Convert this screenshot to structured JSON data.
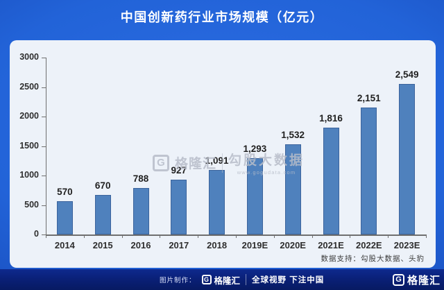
{
  "header": {
    "title": "中国创新药行业市场规模（亿元）"
  },
  "chart_data": {
    "type": "bar",
    "title": "中国创新药行业市场规模（亿元）",
    "categories": [
      "2014",
      "2015",
      "2016",
      "2017",
      "2018",
      "2019E",
      "2020E",
      "2021E",
      "2022E",
      "2023E"
    ],
    "values": [
      570,
      670,
      788,
      927,
      1091,
      1293,
      1532,
      1816,
      2151,
      2549
    ],
    "value_labels": [
      "570",
      "670",
      "788",
      "927",
      "1,091",
      "1,293",
      "1,532",
      "1,816",
      "2,151",
      "2,549"
    ],
    "xlabel": "",
    "ylabel": "",
    "ylim": [
      0,
      3000
    ],
    "yticks": [
      3000,
      2500,
      2000,
      1500,
      1000,
      500,
      0
    ],
    "ytick_labels": [
      "3000",
      "2500",
      "2000",
      "1500",
      "1000",
      "500",
      "0"
    ],
    "grid": false,
    "legend": null,
    "bar_color": "#4f81bd",
    "bar_border_color": "#3b639c"
  },
  "watermark": {
    "glyph": "G",
    "brand": "格隆汇",
    "divider": "|",
    "partner": "勾股大数据",
    "url": "www.gogudata.com"
  },
  "panel": {
    "data_support": "数据支持：勾股大数据、头豹"
  },
  "footer": {
    "made_by": "图片制作：",
    "glyph": "G",
    "brand": "格隆汇",
    "divider": "|",
    "slogan": "全球视野 下注中国",
    "right_glyph": "G",
    "right_brand": "格隆汇"
  },
  "colors": {
    "accent_bar": "#4f81bd",
    "background_blue": "#2263d8",
    "footer_navy": "#0a2078",
    "panel_bg": "#edf2f9"
  }
}
